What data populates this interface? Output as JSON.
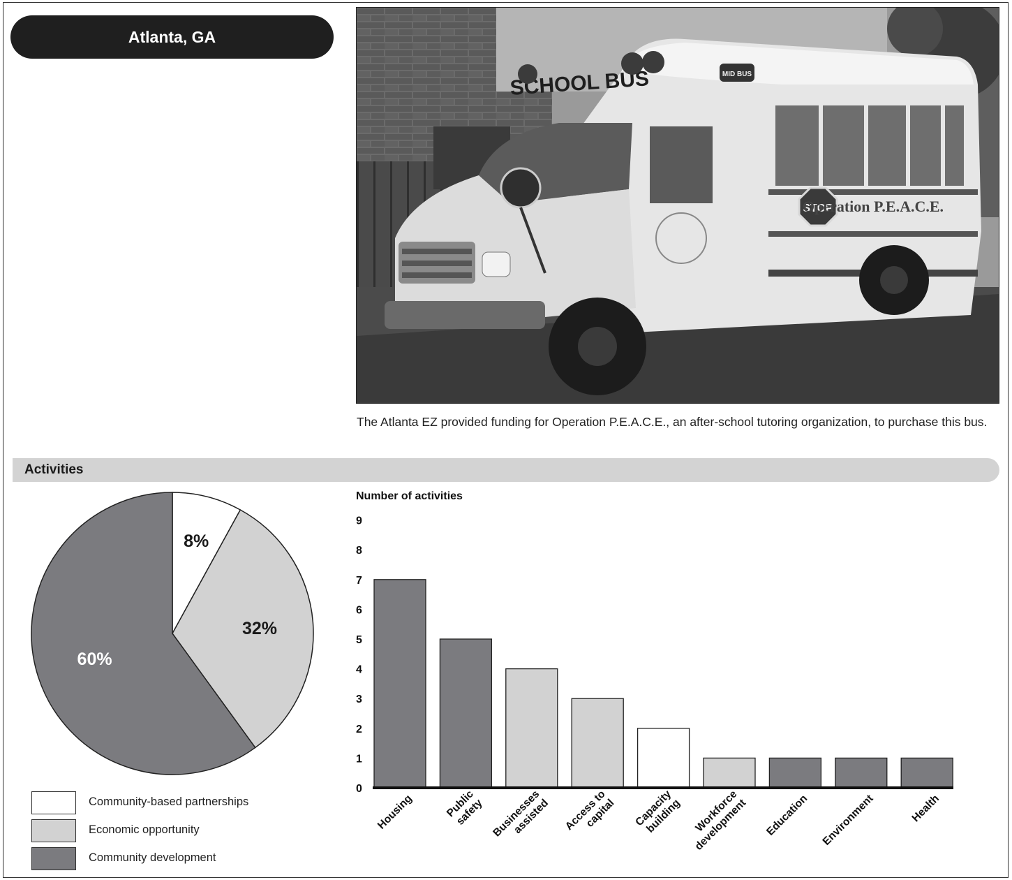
{
  "header": {
    "city": "Atlanta, GA"
  },
  "photo": {
    "caption": "The Atlanta EZ provided funding for Operation P.E.A.C.E., an after-school tutoring organization, to purchase this bus.",
    "bus_lettering": "SCHOOL BUS",
    "side_lettering": "Operation P.E.A.C.E.",
    "stop_sign": "STOP",
    "maker_badge": "MID BUS"
  },
  "section": {
    "title": "Activities"
  },
  "colors": {
    "white": "#ffffff",
    "light_gray": "#d2d2d2",
    "dark_gray": "#7b7b7f",
    "frame": "#222222"
  },
  "chart_data": [
    {
      "type": "pie",
      "slices": [
        {
          "name": "Community-based partnerships",
          "value": 8,
          "label": "8%",
          "color": "#ffffff"
        },
        {
          "name": "Economic opportunity",
          "value": 32,
          "label": "32%",
          "color": "#d2d2d2"
        },
        {
          "name": "Community development",
          "value": 60,
          "label": "60%",
          "color": "#7b7b7f"
        }
      ],
      "legend": {
        "position": "bottom",
        "items": [
          {
            "label": "Community-based partnerships",
            "color": "#ffffff"
          },
          {
            "label": "Economic opportunity",
            "color": "#d2d2d2"
          },
          {
            "label": "Community development",
            "color": "#7b7b7f"
          }
        ]
      }
    },
    {
      "type": "bar",
      "ylabel": "Number of activities",
      "ylim": [
        0,
        9
      ],
      "yticks": [
        0,
        1,
        2,
        3,
        4,
        5,
        6,
        7,
        8,
        9
      ],
      "grid": false,
      "categories": [
        "Housing",
        "Public safety",
        "Businesses assisted",
        "Access to capital",
        "Capacity building",
        "Workforce development",
        "Education",
        "Environment",
        "Health"
      ],
      "category_lines": [
        [
          "Housing"
        ],
        [
          "Public",
          "safety"
        ],
        [
          "Businesses",
          "assisted"
        ],
        [
          "Access to",
          "capital"
        ],
        [
          "Capacity",
          "building"
        ],
        [
          "Workforce",
          "development"
        ],
        [
          "Education"
        ],
        [
          "Environment"
        ],
        [
          "Health"
        ]
      ],
      "values": [
        7,
        5,
        4,
        3,
        2,
        1,
        1,
        1,
        1
      ],
      "colors": [
        "#7b7b7f",
        "#7b7b7f",
        "#d2d2d2",
        "#d2d2d2",
        "#ffffff",
        "#d2d2d2",
        "#7b7b7f",
        "#7b7b7f",
        "#7b7b7f"
      ]
    }
  ]
}
